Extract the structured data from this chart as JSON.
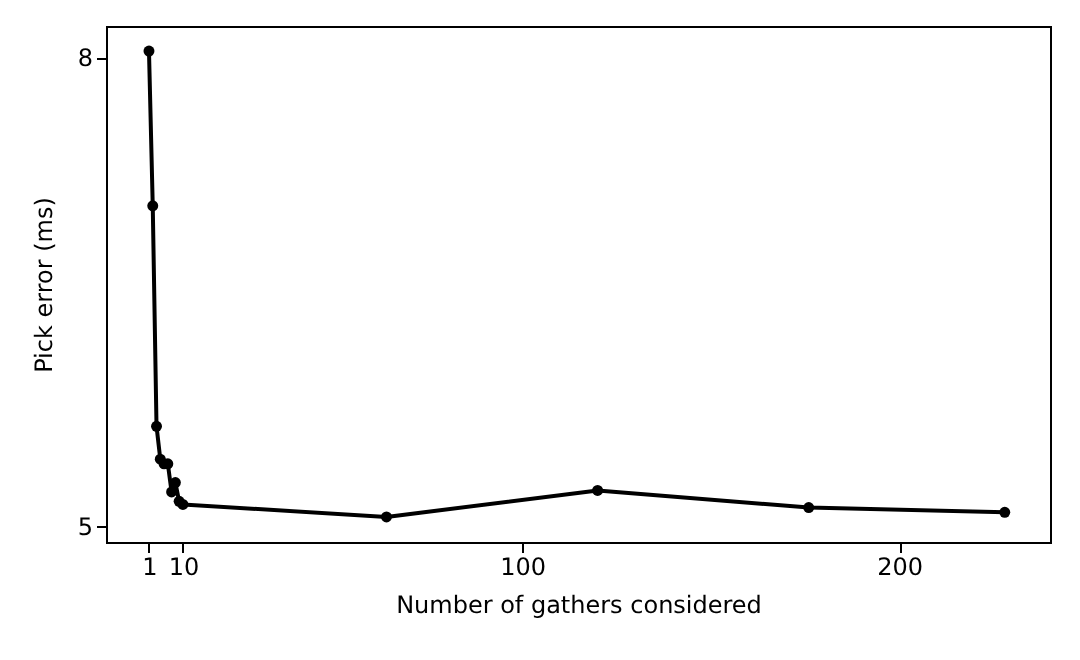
{
  "chart_data": {
    "type": "line",
    "xlabel": "Number of gathers considered",
    "ylabel": "Pick error (ms)",
    "x": [
      1,
      2,
      3,
      4,
      5,
      6,
      7,
      8,
      9,
      10,
      64,
      120,
      176,
      228
    ],
    "series": [
      {
        "color": "#000000",
        "values": [
          8.04,
          7.05,
          5.64,
          5.43,
          5.4,
          5.4,
          5.22,
          5.28,
          5.16,
          5.14,
          5.06,
          5.23,
          5.12,
          5.09
        ]
      }
    ],
    "xlim": [
      -10.4,
      240
    ],
    "xticks": [
      1,
      10,
      100,
      200
    ],
    "ylim": [
      4.9,
      8.2
    ],
    "yticks": [
      5,
      8
    ],
    "grid": false,
    "marker": "circle",
    "line_style": "solid"
  }
}
